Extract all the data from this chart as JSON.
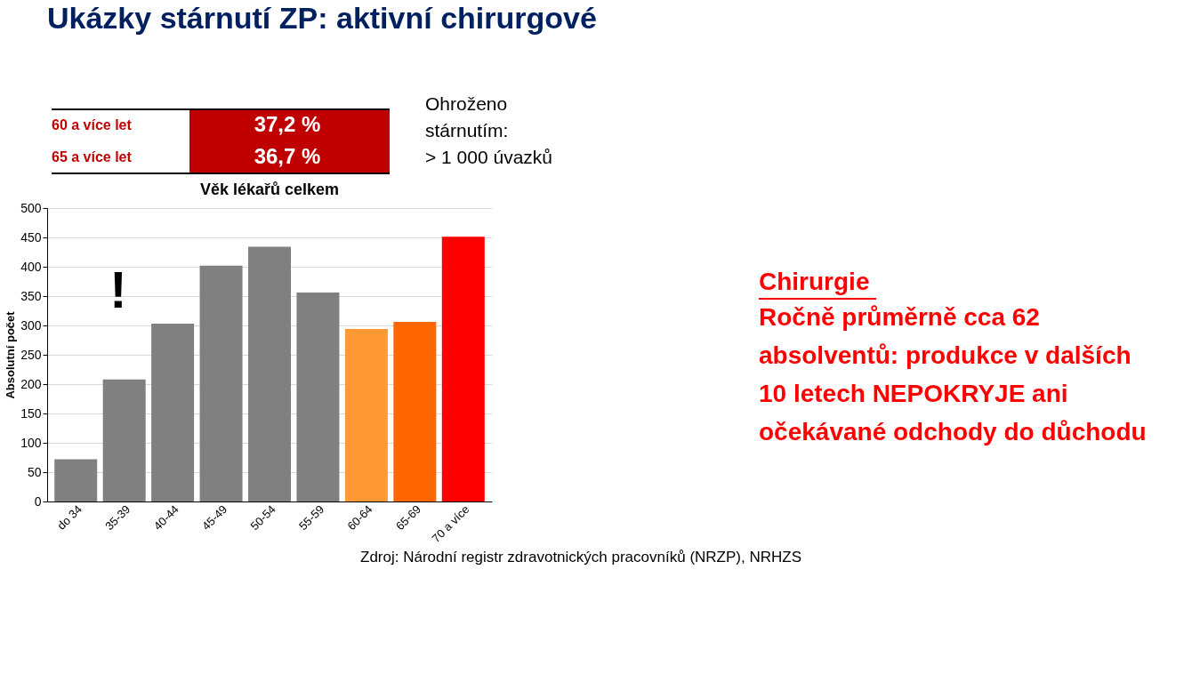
{
  "chart_data": {
    "type": "bar",
    "title": "Ukázky stárnutí ZP: aktivní chirurgové",
    "subtitle": "Věk lékařů celkem",
    "ylabel": "Absolutní počet",
    "categories": [
      "do 34",
      "35-39",
      "40-44",
      "45-49",
      "50-54",
      "55-59",
      "60-64",
      "65-69",
      "70 a více"
    ],
    "values": [
      72,
      208,
      303,
      402,
      434,
      356,
      294,
      306,
      451
    ],
    "colors": [
      "#808080",
      "#808080",
      "#808080",
      "#808080",
      "#808080",
      "#808080",
      "#ff9933",
      "#ff6600",
      "#ff0000"
    ],
    "ylim": [
      0,
      500
    ],
    "yticks": [
      0,
      50,
      100,
      150,
      200,
      250,
      300,
      350,
      400,
      450,
      500
    ],
    "grid": "y",
    "annotations": [
      "60 a více let",
      "37,2 %",
      "65 a více let",
      "36,7 %",
      "Ohroženo\nstárnutím:\n> 1 000 úvazků",
      "Chirurgie",
      "Ročně průměrně cca 62\nabsolventů: produkce v dalších\n10 letech NEPOKRYJE ani\nočekávané odchody do důchodu",
      "Zdroj: Národní registr zdravotnických pracovníků (NRZP), NRHZS",
      "!"
    ]
  }
}
